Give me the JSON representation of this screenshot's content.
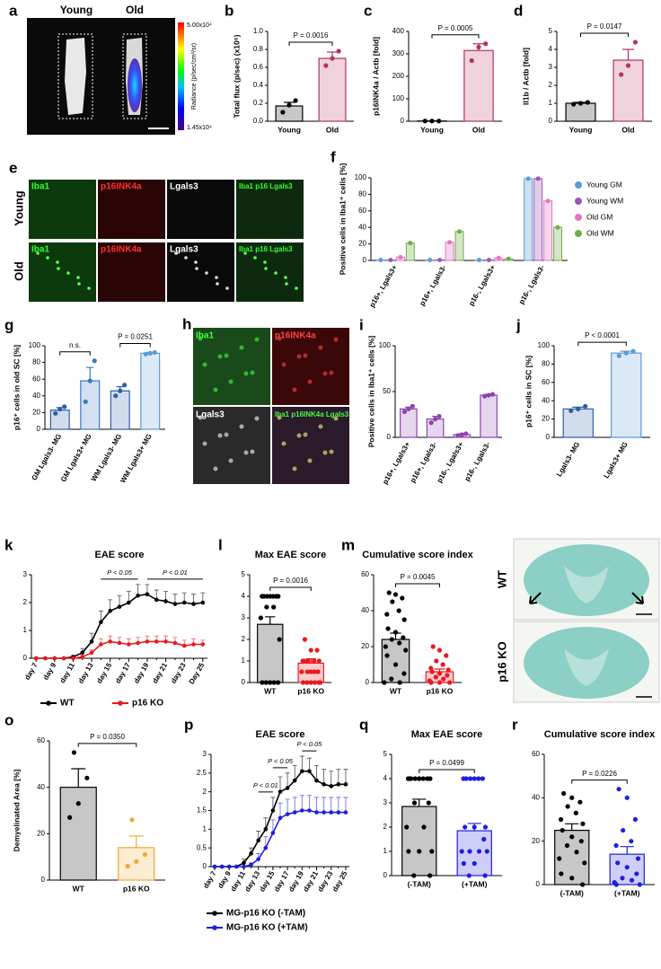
{
  "chart_data": [
    {
      "type": "bar",
      "panel": "b",
      "ylabel": "Total flux (p/sec) (x10⁶)",
      "categories": [
        "Young",
        "Old"
      ],
      "values": [
        0.17,
        0.7
      ],
      "errors": [
        0.04,
        0.07
      ],
      "points": [
        [
          0.1,
          0.18,
          0.23
        ],
        [
          0.62,
          0.7,
          0.78
        ]
      ],
      "colors": [
        "#000000",
        "#b5335e"
      ],
      "ylim": [
        0,
        1.0
      ],
      "yticks": [
        {
          "value": 0,
          "label": "0.0"
        },
        {
          "value": 0.2,
          "label": "0.2"
        },
        {
          "value": 0.4,
          "label": "0.4"
        },
        {
          "value": 0.6,
          "label": "0.6"
        },
        {
          "value": 0.8,
          "label": "0.8"
        },
        {
          "value": 1.0,
          "label": "1.0"
        }
      ],
      "annotations": [
        "P = 0.0016"
      ]
    },
    {
      "type": "bar",
      "panel": "c",
      "ylabel": "p16INK4a / Actb [fold]",
      "categories": [
        "Young",
        "Old"
      ],
      "values": [
        1,
        315
      ],
      "errors": [
        0,
        30
      ],
      "points": [
        [
          1,
          1,
          1
        ],
        [
          270,
          330,
          345
        ]
      ],
      "colors": [
        "#000000",
        "#b5335e"
      ],
      "ylim": [
        0,
        400
      ],
      "yticks": [
        0,
        100,
        200,
        300,
        400
      ],
      "annotations": [
        "P = 0.0005"
      ]
    },
    {
      "type": "bar",
      "panel": "d",
      "ylabel": "Il1b / Actb [fold]",
      "categories": [
        "Young",
        "Old"
      ],
      "values": [
        1.0,
        3.4
      ],
      "errors": [
        0.05,
        0.6
      ],
      "points": [
        [
          0.95,
          1.0,
          1.05
        ],
        [
          2.6,
          3.1,
          4.4
        ]
      ],
      "colors": [
        "#000000",
        "#b5335e"
      ],
      "ylim": [
        0,
        5
      ],
      "yticks": [
        0,
        1,
        2,
        3,
        4,
        5
      ],
      "annotations": [
        "P = 0.0147"
      ]
    },
    {
      "type": "grouped_bar",
      "panel": "f",
      "ylabel": "Positive cells in Iba1⁺ cells [%]",
      "categories": [
        "p16+, Lgals3+",
        "p16+, Lgals3-",
        "p16-, Lgals3+",
        "p16-, Lgals3-"
      ],
      "series": [
        {
          "name": "Young GM",
          "color": "#5b9bd5",
          "values": [
            0.5,
            0.5,
            0.5,
            99
          ]
        },
        {
          "name": "Young WM",
          "color": "#9b59b6",
          "values": [
            0.5,
            0.5,
            0.5,
            99
          ]
        },
        {
          "name": "Old GM",
          "color": "#e377c2",
          "values": [
            4,
            22,
            3,
            72
          ]
        },
        {
          "name": "Old WM",
          "color": "#70ad47",
          "values": [
            21,
            35,
            2,
            40
          ]
        }
      ],
      "ylim": [
        0,
        100
      ],
      "yticks": [
        0,
        20,
        40,
        60,
        80,
        100
      ]
    },
    {
      "type": "bar",
      "panel": "g",
      "ylabel": "p16⁺ cells in old SC [%]",
      "categories": [
        "GM Lgals3- MG",
        "GM Lgals3+ MG",
        "WM Lgals3- MG",
        "WM Lgals3+ MG"
      ],
      "values": [
        23,
        58,
        46,
        91
      ],
      "errors": [
        3,
        16,
        5,
        1
      ],
      "points": [
        [
          19,
          24,
          27
        ],
        [
          33,
          58,
          82
        ],
        [
          40,
          46,
          53
        ],
        [
          90,
          91,
          92
        ]
      ],
      "colors": [
        "#2f5fa7",
        "#3b78c4",
        "#2f5fa7",
        "#5b9bd5"
      ],
      "ylim": [
        0,
        100
      ],
      "yticks": [
        0,
        20,
        40,
        60,
        80,
        100
      ],
      "annotations": [
        "n.s.",
        "P = 0.0251"
      ]
    },
    {
      "type": "bar",
      "panel": "i",
      "ylabel": "Positive cells in Iba1⁺ cells [%]",
      "categories": [
        "p16+, Lgals3+",
        "p16+, Lgals3-",
        "p16-, Lgals3+",
        "p16-, Lgals3-"
      ],
      "values": [
        31,
        20,
        3,
        46
      ],
      "errors": [
        2,
        3,
        1,
        1
      ],
      "points": [
        [
          28,
          31,
          34
        ],
        [
          16,
          20,
          23
        ],
        [
          2,
          3,
          4
        ],
        [
          45,
          46,
          47
        ]
      ],
      "colors": [
        "#8e44ad",
        "#8e44ad",
        "#8e44ad",
        "#8e44ad"
      ],
      "ylim": [
        0,
        100
      ],
      "yticks": [
        0,
        50,
        100
      ]
    },
    {
      "type": "bar",
      "panel": "j",
      "ylabel": "p16⁺ cells in SC [%]",
      "categories": [
        "Lgals3- MG",
        "Lgals3+ MG"
      ],
      "values": [
        31,
        92
      ],
      "errors": [
        2,
        2
      ],
      "points": [
        [
          29,
          31,
          34
        ],
        [
          89,
          92,
          94
        ]
      ],
      "colors": [
        "#2f5fa7",
        "#5b9bd5"
      ],
      "ylim": [
        0,
        100
      ],
      "yticks": [
        0,
        20,
        40,
        60,
        80,
        100
      ],
      "annotations": [
        "P < 0.0001"
      ]
    },
    {
      "type": "line",
      "panel": "k",
      "title": "EAE score",
      "categories": [
        "day 7",
        null,
        "day 9",
        null,
        "day 11",
        null,
        "day 13",
        null,
        "day 15",
        null,
        "day 17",
        null,
        "day 19",
        null,
        "day 21",
        null,
        "day 23",
        null,
        "Day 25"
      ],
      "series": [
        {
          "name": "WT",
          "color": "#000000",
          "values": [
            0,
            0,
            0,
            0,
            0.05,
            0.2,
            0.6,
            1.3,
            1.7,
            1.85,
            2.0,
            2.25,
            2.3,
            2.1,
            2.05,
            1.95,
            2.0,
            1.95,
            2.0
          ],
          "errors": [
            0,
            0,
            0,
            0,
            0.05,
            0.15,
            0.3,
            0.4,
            0.4,
            0.4,
            0.4,
            0.4,
            0.35,
            0.35,
            0.35,
            0.35,
            0.35,
            0.35,
            0.35
          ]
        },
        {
          "name": "p16 KO",
          "color": "#e8191f",
          "values": [
            0,
            0,
            0,
            0,
            0,
            0.05,
            0.2,
            0.5,
            0.6,
            0.55,
            0.5,
            0.55,
            0.6,
            0.6,
            0.6,
            0.55,
            0.45,
            0.5,
            0.5
          ],
          "errors": [
            0,
            0,
            0,
            0,
            0,
            0.05,
            0.1,
            0.2,
            0.2,
            0.2,
            0.2,
            0.2,
            0.2,
            0.2,
            0.2,
            0.2,
            0.2,
            0.2,
            0.15
          ]
        }
      ],
      "ylim": [
        0,
        3
      ],
      "yticks": [
        0,
        1,
        2,
        3
      ],
      "annotations": [
        "P < 0.05",
        "P < 0.01"
      ]
    },
    {
      "type": "bar",
      "panel": "l",
      "title": "Max EAE score",
      "categories": [
        "WT",
        "p16 KO"
      ],
      "values": [
        2.7,
        0.9
      ],
      "errors": [
        0.35,
        0.2
      ],
      "points": [
        [
          4,
          4,
          4,
          4,
          4,
          4,
          4,
          4,
          4,
          4,
          3.5,
          3.5,
          3,
          2,
          0,
          0,
          0,
          0,
          0
        ],
        [
          2,
          1.5,
          1.5,
          1,
          1,
          1,
          1,
          1,
          0.5,
          0.5,
          0.5,
          0.5,
          0.5,
          0,
          0,
          0,
          0,
          0,
          0
        ]
      ],
      "colors": [
        "#000000",
        "#e8191f"
      ],
      "ylim": [
        0,
        5
      ],
      "yticks": [
        0,
        1,
        2,
        3,
        4,
        5
      ],
      "annotations": [
        "P = 0.0016"
      ]
    },
    {
      "type": "bar",
      "panel": "m",
      "title": "Cumulative score index",
      "categories": [
        "WT",
        "p16 KO"
      ],
      "values": [
        24,
        6
      ],
      "errors": [
        3.5,
        1.5
      ],
      "points": [
        [
          50,
          49,
          47,
          45,
          40,
          38,
          35,
          30,
          28,
          25,
          24,
          22,
          20,
          18,
          15,
          10,
          5,
          2,
          0,
          0
        ],
        [
          20,
          18,
          15,
          12,
          10,
          8,
          7,
          6,
          5,
          4,
          3,
          2,
          1,
          0,
          0,
          0
        ]
      ],
      "colors": [
        "#000000",
        "#e8191f"
      ],
      "ylim": [
        0,
        60
      ],
      "yticks": [
        0,
        20,
        40,
        60
      ],
      "annotations": [
        "P = 0.0045"
      ]
    },
    {
      "type": "bar",
      "panel": "o",
      "ylabel": "Demyelinated Area [%]",
      "categories": [
        "WT",
        "p16 KO"
      ],
      "values": [
        40,
        14
      ],
      "errors": [
        8,
        5
      ],
      "points": [
        [
          27,
          33,
          44,
          55
        ],
        [
          6,
          8,
          11,
          26
        ]
      ],
      "colors": [
        "#000000",
        "#f0a830"
      ],
      "ylim": [
        0,
        60
      ],
      "yticks": [
        0,
        20,
        40,
        60
      ],
      "annotations": [
        "P = 0.0350"
      ]
    },
    {
      "type": "line",
      "panel": "p",
      "title": "EAE score",
      "categories": [
        "day 7",
        null,
        "day 9",
        null,
        "day 11",
        null,
        "day 13",
        null,
        "day 15",
        null,
        "day 17",
        null,
        "day 19",
        null,
        "day 21",
        null,
        "day 23",
        null,
        "day 25"
      ],
      "series": [
        {
          "name": "MG-p16 KO (-TAM)",
          "color": "#000000",
          "values": [
            0,
            0,
            0,
            0,
            0.1,
            0.35,
            0.7,
            1.0,
            1.5,
            2.0,
            2.1,
            2.3,
            2.55,
            2.55,
            2.3,
            2.2,
            2.15,
            2.2,
            2.2
          ],
          "errors": [
            0,
            0,
            0,
            0,
            0.1,
            0.15,
            0.25,
            0.3,
            0.35,
            0.4,
            0.4,
            0.4,
            0.4,
            0.35,
            0.4,
            0.4,
            0.4,
            0.4,
            0.4
          ]
        },
        {
          "name": "MG-p16 KO (+TAM)",
          "color": "#1f1fe0",
          "values": [
            0,
            0,
            0,
            0,
            0,
            0.05,
            0.2,
            0.5,
            0.9,
            1.3,
            1.4,
            1.45,
            1.5,
            1.5,
            1.45,
            1.45,
            1.45,
            1.45,
            1.45
          ],
          "errors": [
            0,
            0,
            0,
            0,
            0,
            0.05,
            0.15,
            0.3,
            0.35,
            0.4,
            0.4,
            0.4,
            0.4,
            0.4,
            0.4,
            0.4,
            0.4,
            0.4,
            0.4
          ]
        }
      ],
      "ylim": [
        0,
        3
      ],
      "yticks": [
        0,
        0.5,
        1,
        1.5,
        2,
        2.5,
        3
      ],
      "annotations": [
        "P < 0.01",
        "P < 0.05",
        "P < 0.05"
      ]
    },
    {
      "type": "bar",
      "panel": "q",
      "title": "Max EAE score",
      "categories": [
        "(-TAM)",
        "(+TAM)"
      ],
      "values": [
        2.85,
        1.85
      ],
      "errors": [
        0.3,
        0.3
      ],
      "points": [
        [
          4,
          4,
          4,
          4,
          4,
          4,
          4,
          4,
          4,
          3,
          3,
          2,
          2,
          1,
          1,
          1,
          0,
          0
        ],
        [
          4,
          4,
          4,
          4,
          4,
          4,
          2,
          2,
          2,
          1.5,
          1,
          1,
          1,
          1,
          0.5,
          0.5,
          0,
          0
        ]
      ],
      "colors": [
        "#000000",
        "#1f1fe0"
      ],
      "ylim": [
        0,
        5
      ],
      "yticks": [
        0,
        1,
        2,
        3,
        4,
        5
      ],
      "annotations": [
        "P = 0.0499"
      ]
    },
    {
      "type": "bar",
      "panel": "r",
      "title": "Cumulative score index",
      "categories": [
        "(-TAM)",
        "(+TAM)"
      ],
      "values": [
        25,
        14
      ],
      "errors": [
        3,
        3.5
      ],
      "points": [
        [
          42,
          40,
          38,
          36,
          33,
          30,
          28,
          25,
          22,
          20,
          18,
          15,
          12,
          10,
          5,
          3,
          0
        ],
        [
          44,
          40,
          30,
          25,
          20,
          18,
          12,
          10,
          8,
          5,
          3,
          2,
          1,
          0,
          0
        ]
      ],
      "colors": [
        "#000000",
        "#1f1fe0"
      ],
      "ylim": [
        0,
        60
      ],
      "yticks": [
        0,
        20,
        40,
        60
      ],
      "annotations": [
        "P = 0.0226"
      ]
    }
  ],
  "images": [
    {
      "panel": "a",
      "labels": [
        "Young",
        "Old"
      ],
      "colorbar": {
        "max": "5.00x10⁴",
        "min": "1.45x10⁴",
        "label": "Radiance (p/sec/cm²/sr)"
      }
    },
    {
      "panel": "e",
      "rows": [
        "Young",
        "Old"
      ],
      "columns": [
        "Iba1",
        "p16INK4a",
        "Lgals3",
        "Iba1 p16 Lgals3"
      ]
    },
    {
      "panel": "h",
      "tiles": [
        "Iba1",
        "p16INK4a",
        "Lgals3",
        "Iba1 p16INK4a Lgals3"
      ]
    },
    {
      "panel": "n",
      "rows": [
        "WT",
        "p16 KO"
      ]
    }
  ]
}
